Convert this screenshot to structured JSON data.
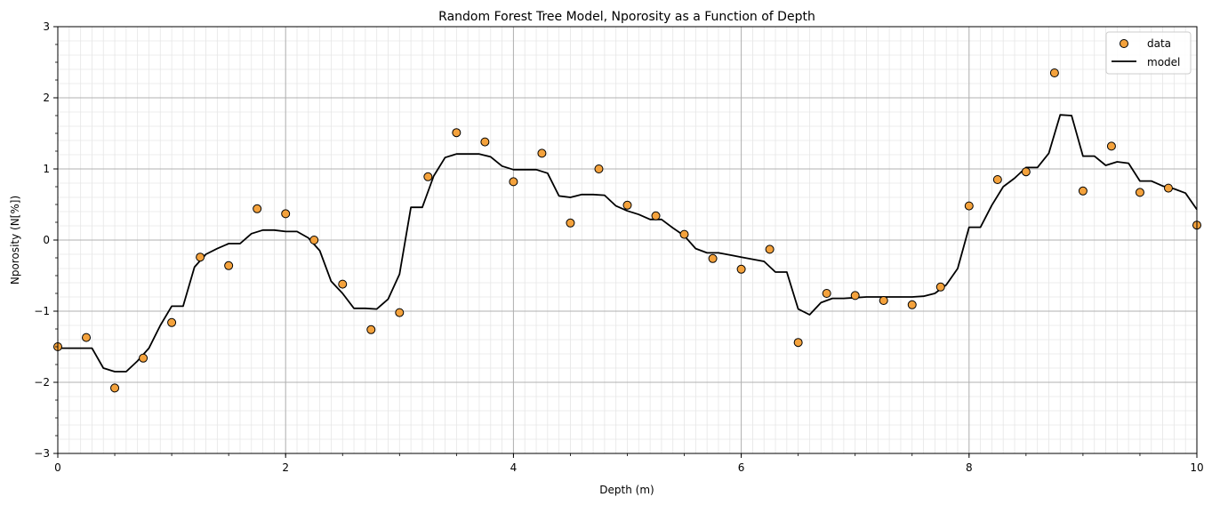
{
  "chart_data": {
    "type": "scatter",
    "title": "Random Forest Tree Model, Nporosity as a Function of Depth",
    "xlabel": "Depth (m)",
    "ylabel": "Nporosity (N[%])",
    "xlim": [
      0,
      10
    ],
    "ylim": [
      -3,
      3
    ],
    "x_ticks": [
      0,
      2,
      4,
      6,
      8,
      10
    ],
    "x_tick_labels": [
      "0",
      "2",
      "4",
      "6",
      "8",
      "10"
    ],
    "y_ticks": [
      -3,
      -2,
      -1,
      0,
      1,
      2,
      3
    ],
    "y_tick_labels": [
      "−3",
      "−2",
      "−1",
      "0",
      "1",
      "2",
      "3"
    ],
    "x_minor_step": 0.1,
    "y_minor_step": 0.2,
    "grid": true,
    "legend": "top-right",
    "colors": {
      "data_fill": "#f4a23c",
      "data_edge": "#000000",
      "model_line": "#000000"
    },
    "series": [
      {
        "name": "data",
        "kind": "scatter",
        "x": [
          0.0,
          0.25,
          0.5,
          0.75,
          1.0,
          1.25,
          1.5,
          1.75,
          2.0,
          2.25,
          2.5,
          2.75,
          3.0,
          3.25,
          3.5,
          3.75,
          4.0,
          4.25,
          4.5,
          4.75,
          5.0,
          5.25,
          5.5,
          5.75,
          6.0,
          6.25,
          6.5,
          6.75,
          7.0,
          7.25,
          7.5,
          7.75,
          8.0,
          8.25,
          8.5,
          8.75,
          9.0,
          9.25,
          9.5,
          9.75,
          10.0
        ],
        "y": [
          -1.5,
          -1.37,
          -2.08,
          -1.66,
          -1.16,
          -0.24,
          -0.36,
          0.44,
          0.37,
          0.0,
          -0.62,
          -1.26,
          -1.02,
          0.89,
          1.51,
          1.38,
          0.82,
          1.22,
          0.24,
          1.0,
          0.49,
          0.34,
          0.08,
          -0.26,
          -0.41,
          -0.13,
          -1.44,
          -0.75,
          -0.78,
          -0.85,
          -0.91,
          -0.66,
          0.48,
          0.85,
          0.96,
          2.35,
          0.69,
          1.32,
          0.67,
          0.73,
          0.21
        ]
      },
      {
        "name": "model",
        "kind": "line",
        "x": [
          0.0,
          0.3,
          0.4,
          0.5,
          0.6,
          0.7,
          0.8,
          0.9,
          1.0,
          1.1,
          1.2,
          1.3,
          1.4,
          1.5,
          1.6,
          1.7,
          1.8,
          1.9,
          2.0,
          2.1,
          2.2,
          2.3,
          2.4,
          2.5,
          2.6,
          2.7,
          2.8,
          2.9,
          3.0,
          3.1,
          3.2,
          3.3,
          3.4,
          3.5,
          3.6,
          3.7,
          3.8,
          3.9,
          4.0,
          4.1,
          4.2,
          4.3,
          4.4,
          4.5,
          4.6,
          4.7,
          4.8,
          4.9,
          5.0,
          5.1,
          5.2,
          5.3,
          5.4,
          5.5,
          5.6,
          5.7,
          5.8,
          5.9,
          6.0,
          6.1,
          6.2,
          6.3,
          6.4,
          6.5,
          6.6,
          6.7,
          6.8,
          6.9,
          7.0,
          7.1,
          7.2,
          7.3,
          7.4,
          7.5,
          7.6,
          7.7,
          7.8,
          7.9,
          8.0,
          8.1,
          8.2,
          8.3,
          8.4,
          8.5,
          8.6,
          8.7,
          8.8,
          8.9,
          9.0,
          9.1,
          9.2,
          9.3,
          9.4,
          9.5,
          9.6,
          9.7,
          9.8,
          9.9,
          10.0
        ],
        "y": [
          -1.52,
          -1.52,
          -1.8,
          -1.85,
          -1.85,
          -1.7,
          -1.52,
          -1.2,
          -0.93,
          -0.93,
          -0.38,
          -0.2,
          -0.12,
          -0.05,
          -0.05,
          0.09,
          0.14,
          0.14,
          0.12,
          0.12,
          0.03,
          -0.15,
          -0.58,
          -0.75,
          -0.96,
          -0.96,
          -0.97,
          -0.83,
          -0.48,
          0.46,
          0.46,
          0.9,
          1.16,
          1.21,
          1.21,
          1.21,
          1.17,
          1.04,
          0.99,
          0.99,
          0.99,
          0.94,
          0.62,
          0.6,
          0.64,
          0.64,
          0.63,
          0.48,
          0.41,
          0.36,
          0.29,
          0.29,
          0.17,
          0.06,
          -0.12,
          -0.18,
          -0.18,
          -0.21,
          -0.24,
          -0.27,
          -0.3,
          -0.45,
          -0.45,
          -0.97,
          -1.05,
          -0.88,
          -0.82,
          -0.82,
          -0.81,
          -0.8,
          -0.8,
          -0.8,
          -0.8,
          -0.8,
          -0.79,
          -0.75,
          -0.63,
          -0.4,
          0.18,
          0.18,
          0.49,
          0.75,
          0.87,
          1.02,
          1.02,
          1.22,
          1.76,
          1.75,
          1.18,
          1.18,
          1.05,
          1.1,
          1.08,
          0.83,
          0.83,
          0.76,
          0.72,
          0.66,
          0.43
        ]
      }
    ]
  }
}
